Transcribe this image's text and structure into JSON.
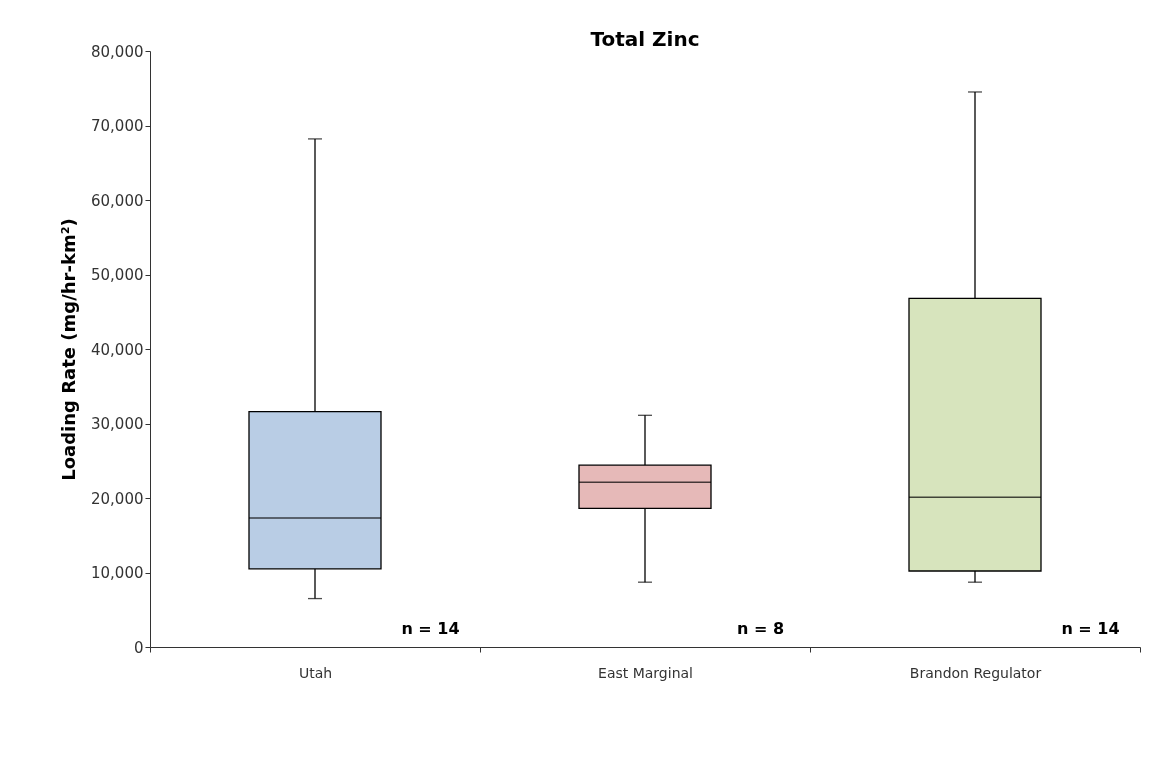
{
  "chart_data": {
    "type": "box",
    "title": "Total Zinc",
    "ylabel": "Loading Rate (mg/hr-km²)",
    "categories": [
      "Utah",
      "East Marginal",
      "Brandon Regulator"
    ],
    "boxes": [
      {
        "low": 6500,
        "q1": 10500,
        "median": 17300,
        "q3": 31600,
        "high": 68200
      },
      {
        "low": 8700,
        "q1": 18600,
        "median": 22100,
        "q3": 24400,
        "high": 31100
      },
      {
        "low": 8700,
        "q1": 10200,
        "median": 20100,
        "q3": 46800,
        "high": 74500
      }
    ],
    "colors": [
      "#b9cde5",
      "#e6b9b8",
      "#d7e4bd"
    ],
    "annotations": [
      "n = 14",
      "n = 8",
      "n = 14"
    ],
    "ylim": [
      0,
      80000
    ],
    "yticks": [
      0,
      {
        "value": 10000,
        "label": "10,000"
      },
      {
        "value": 20000,
        "label": "20,000"
      },
      {
        "value": 30000,
        "label": "30,000"
      },
      {
        "value": 40000,
        "label": "40,000"
      },
      {
        "value": 50000,
        "label": "50,000"
      },
      {
        "value": 60000,
        "label": "60,000"
      },
      {
        "value": 70000,
        "label": "70,000"
      },
      {
        "value": 80000,
        "label": "80,000"
      }
    ],
    "grid": false,
    "legend": false
  }
}
